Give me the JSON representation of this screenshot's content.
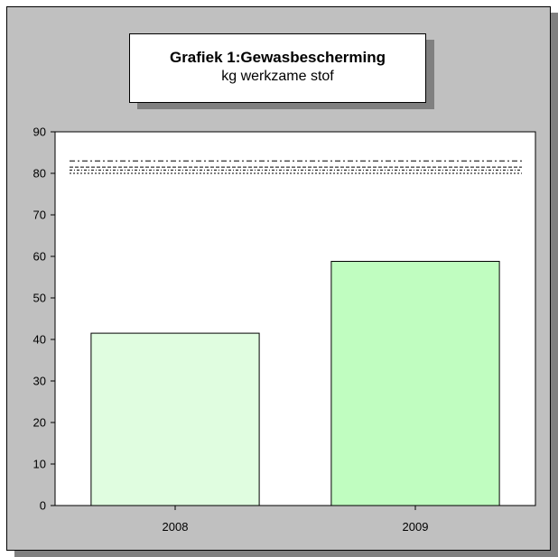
{
  "chart_data": {
    "type": "bar",
    "title": "Grafiek 1:Gewasbescherming",
    "subtitle": "kg werkzame stof",
    "categories": [
      "2008",
      "2009"
    ],
    "values": [
      41.5,
      58.8
    ],
    "bar_colors": [
      "#e0fde0",
      "#c0fdc0"
    ],
    "ylim": [
      0,
      90
    ],
    "yticks": [
      0,
      10,
      20,
      30,
      40,
      50,
      60,
      70,
      80,
      90
    ],
    "reference_lines": [
      83,
      81.5,
      80.8,
      80
    ],
    "grid": false,
    "legend": false
  }
}
